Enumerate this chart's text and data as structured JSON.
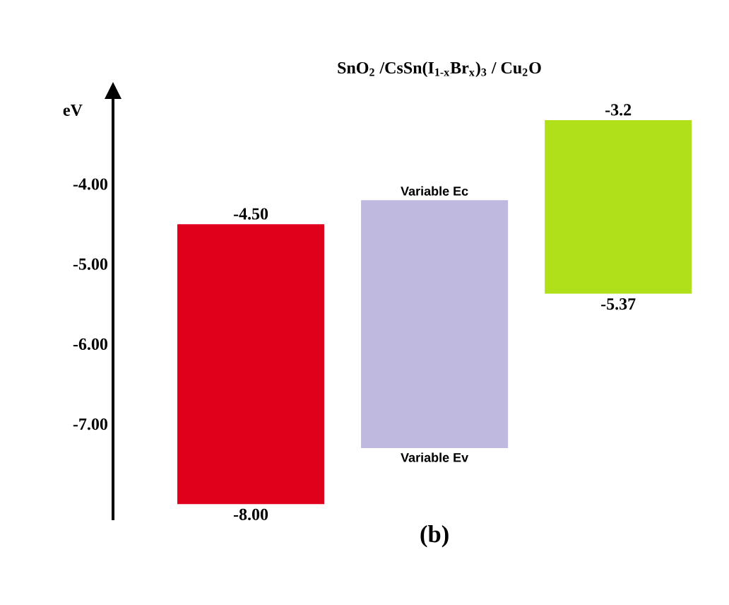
{
  "chart_data": {
    "type": "bar",
    "title": "SnO$_{2}$ /CsSn(I$_{1-x}$Br$_{x}$)$_{3}$ / Cu$_{2}$O",
    "ylabel": "eV",
    "categories": [
      null,
      null,
      null
    ],
    "base": [
      -8.0,
      -7.3,
      -5.37
    ],
    "values": [
      3.5,
      3.1,
      2.17
    ],
    "colors": [
      "#e0001b",
      "#bfb9e0",
      "#b0e01a"
    ],
    "ylim": [
      -8.2,
      -2.9
    ],
    "yticks": [
      {
        "value": -4,
        "label": "-4.00"
      },
      {
        "value": -5,
        "label": "-5.00"
      },
      {
        "value": -6,
        "label": "-6.00"
      },
      {
        "value": -7,
        "label": "-7.00"
      }
    ],
    "annotations": [
      {
        "text": "-4.50",
        "y": -4.5
      },
      {
        "text": "-8.00",
        "y": -8.0
      },
      {
        "text": "Variable Ec",
        "y": -4.2
      },
      {
        "text": "Variable Ev",
        "y": -7.3
      },
      {
        "text": "-3.2",
        "y": -3.2
      },
      {
        "text": "-5.37",
        "y": -5.37
      },
      "(b)"
    ]
  }
}
